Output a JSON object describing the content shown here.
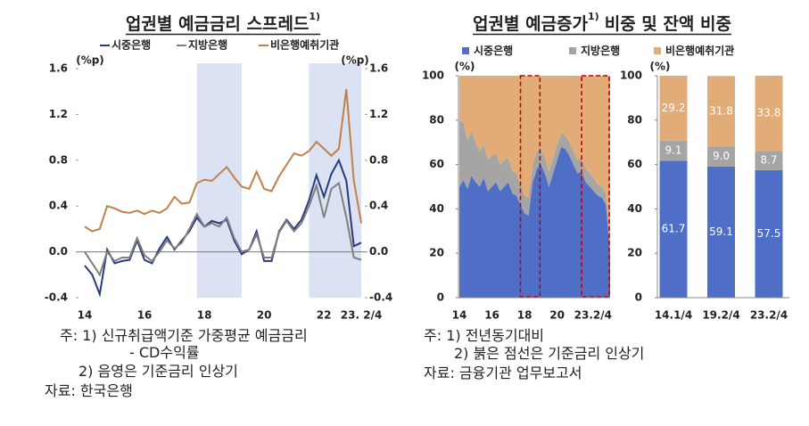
{
  "chart_data": [
    {
      "type": "line",
      "title": "업권별 예금금리 스프레드",
      "title_note": "1)",
      "categories": [
        "14",
        null,
        null,
        null,
        null,
        null,
        null,
        null,
        "16",
        null,
        null,
        null,
        null,
        null,
        null,
        null,
        "18",
        null,
        null,
        null,
        null,
        null,
        null,
        null,
        "20",
        null,
        null,
        null,
        null,
        null,
        null,
        null,
        "22",
        null,
        null,
        null,
        null,
        "23. 2/4"
      ],
      "series": [
        {
          "name": "시중은행",
          "color": "#2b3a80",
          "values": [
            -0.12,
            -0.2,
            -0.37,
            0.02,
            -0.1,
            -0.08,
            -0.07,
            0.1,
            -0.07,
            -0.1,
            0.03,
            0.13,
            0.02,
            0.1,
            0.18,
            0.3,
            0.22,
            0.27,
            0.25,
            0.28,
            0.1,
            -0.02,
            0.02,
            0.18,
            -0.08,
            -0.08,
            0.18,
            0.28,
            0.2,
            0.28,
            0.45,
            0.67,
            0.48,
            0.68,
            0.8,
            0.62,
            0.05,
            0.08
          ]
        },
        {
          "name": "지방은행",
          "color": "#7f7f7f",
          "values": [
            0.0,
            -0.1,
            -0.2,
            0.0,
            -0.08,
            -0.05,
            -0.05,
            0.12,
            -0.03,
            -0.08,
            0.0,
            0.1,
            0.03,
            0.08,
            0.2,
            0.33,
            0.22,
            0.25,
            0.22,
            0.3,
            0.12,
            0.0,
            0.02,
            0.15,
            -0.05,
            -0.05,
            0.17,
            0.27,
            0.18,
            0.25,
            0.4,
            0.58,
            0.3,
            0.55,
            0.6,
            0.3,
            -0.05,
            -0.07
          ]
        },
        {
          "name": "비은행예취기관",
          "color": "#c0804a",
          "values": [
            0.22,
            0.18,
            0.2,
            0.4,
            0.38,
            0.35,
            0.34,
            0.36,
            0.33,
            0.36,
            0.34,
            0.38,
            0.48,
            0.42,
            0.43,
            0.6,
            0.63,
            0.62,
            0.68,
            0.74,
            0.65,
            0.57,
            0.55,
            0.7,
            0.55,
            0.53,
            0.66,
            0.76,
            0.86,
            0.84,
            0.88,
            0.96,
            0.9,
            0.84,
            0.9,
            1.42,
            0.62,
            0.25
          ]
        }
      ],
      "ylim": [
        -0.4,
        1.6
      ],
      "yticks": [
        -0.4,
        {
          "value": 0,
          "label": "0.0"
        },
        0.4,
        0.8,
        1.2,
        1.6
      ],
      "y2lim": [
        -0.4,
        1.6
      ],
      "y2ticks": [
        -0.4,
        {
          "value": 0,
          "label": "0.0"
        },
        0.4,
        0.8,
        1.2,
        1.6
      ],
      "y_unit": "(%p)",
      "y2_unit": "(%p)",
      "shaded": [
        [
          15,
          21
        ],
        [
          30,
          37
        ]
      ],
      "notes": [
        "주: 1) 신규취급액기준 가중평균 예금금리",
        "- CD수익률",
        "2) 음영은 기준금리 인상기",
        "자료: 한국은행"
      ]
    },
    {
      "type": "area",
      "title": "업권별 예금증가",
      "title_note": "1)",
      "title_rest": "비중 및 잔액 비중",
      "categories": [
        "14",
        null,
        null,
        null,
        null,
        null,
        null,
        null,
        "16",
        null,
        null,
        null,
        null,
        null,
        null,
        null,
        "18",
        null,
        null,
        null,
        null,
        null,
        null,
        null,
        "20",
        null,
        null,
        null,
        null,
        null,
        null,
        null,
        null,
        null,
        null,
        null,
        null,
        "23.2/4"
      ],
      "series": [
        {
          "name": "시중은행",
          "color": "#4f6ec6",
          "values": [
            50,
            53,
            49,
            55,
            52,
            50,
            54,
            48,
            50,
            52,
            48,
            50,
            52,
            47,
            46,
            42,
            38,
            37,
            52,
            58,
            60,
            56,
            50,
            56,
            62,
            68,
            67,
            64,
            60,
            56,
            57,
            52,
            50,
            48,
            46,
            45,
            42,
            20
          ]
        },
        {
          "name": "지방은행",
          "color": "#a5a5a5",
          "values": [
            30,
            26,
            22,
            20,
            18,
            16,
            15,
            14,
            14,
            13,
            12,
            12,
            11,
            10,
            10,
            9,
            8,
            8,
            8,
            8,
            7,
            7,
            7,
            7,
            7,
            6,
            6,
            6,
            6,
            6,
            6,
            6,
            6,
            6,
            5,
            5,
            5,
            4
          ]
        },
        {
          "name": "비은행예취기관",
          "color": "#e2ac78",
          "values": [
            20,
            21,
            29,
            25,
            30,
            34,
            31,
            38,
            36,
            35,
            40,
            38,
            37,
            43,
            44,
            49,
            54,
            55,
            40,
            34,
            33,
            37,
            43,
            37,
            31,
            26,
            27,
            30,
            34,
            38,
            37,
            42,
            44,
            46,
            49,
            50,
            53,
            76
          ]
        }
      ],
      "ylim": [
        0,
        100
      ],
      "yticks": [
        0,
        20,
        40,
        60,
        80,
        100
      ],
      "y_unit": "(%)",
      "highlight": [
        [
          15,
          20
        ],
        [
          30,
          37
        ]
      ],
      "notes": [
        "주: 1) 전년동기대비",
        "2) 붉은 점선은 기준금리 인상기",
        "자료: 금융기관 업무보고서"
      ]
    },
    {
      "type": "bar",
      "stacked": true,
      "categories": [
        "14.1/4",
        "19.2/4",
        "23.2/4"
      ],
      "series": [
        {
          "color": "#4f6ec6",
          "values": [
            61.7,
            59.1,
            57.5
          ]
        },
        {
          "color": "#a5a5a5",
          "values": [
            9.1,
            9,
            8.7
          ],
          "value_labels": [
            "9.1",
            "9.0",
            "8.7"
          ]
        },
        {
          "color": "#e2ac78",
          "values": [
            29.2,
            31.8,
            33.8
          ]
        }
      ],
      "ylim": [
        0,
        100
      ],
      "yticks": [
        0,
        20,
        40,
        60,
        80,
        100
      ],
      "y_unit": "(%)"
    }
  ]
}
